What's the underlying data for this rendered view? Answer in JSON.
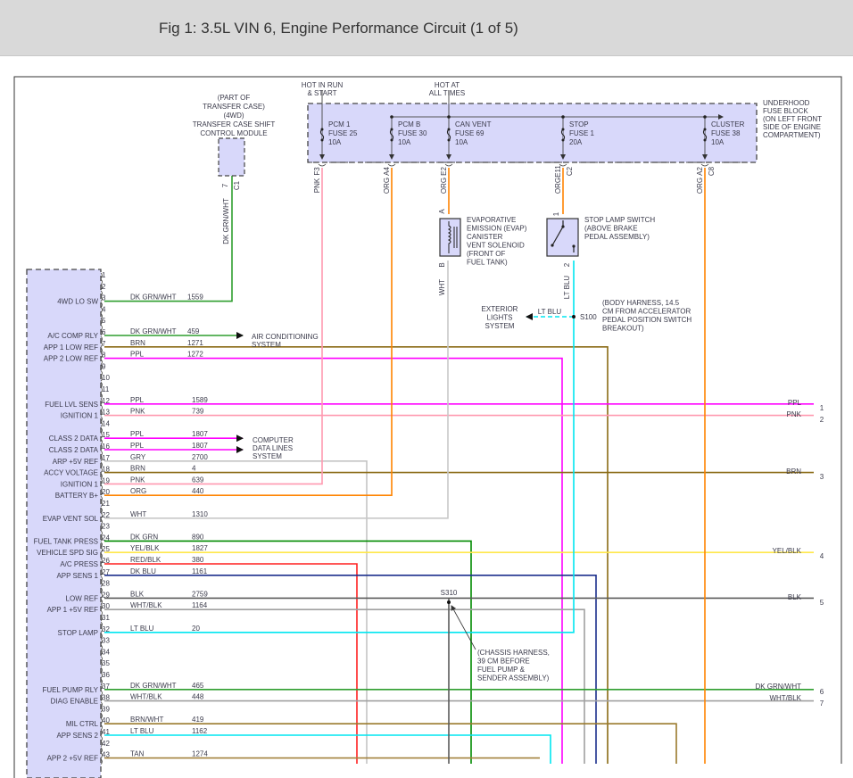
{
  "title": "Fig 1: 3.5L VIN 6, Engine Performance Circuit (1 of 5)",
  "fuse_block": {
    "label": [
      "UNDERHOOD",
      "FUSE BLOCK",
      "(ON LEFT FRONT",
      "SIDE OF ENGINE",
      "COMPARTMENT)"
    ],
    "hot_in_run": [
      "HOT IN RUN",
      "& START"
    ],
    "hot_at_all_times": [
      "HOT AT",
      "ALL TIMES"
    ],
    "fuses": [
      {
        "name": "PCM 1",
        "fuse": "FUSE 25",
        "amps": "10A",
        "terminal": "F3",
        "terminal2": "",
        "wire": "PNK"
      },
      {
        "name": "PCM B",
        "fuse": "FUSE 30",
        "amps": "10A",
        "terminal": "A4",
        "terminal2": "",
        "wire": "ORG"
      },
      {
        "name": "CAN VENT",
        "fuse": "FUSE 69",
        "amps": "10A",
        "terminal": "E2",
        "terminal2": "",
        "wire": "ORG"
      },
      {
        "name": "STOP",
        "fuse": "FUSE 1",
        "amps": "20A",
        "terminal": "E11",
        "terminal2": "C2",
        "wire": "ORG"
      },
      {
        "name": "CLUSTER",
        "fuse": "FUSE 38",
        "amps": "10A",
        "terminal": "A2",
        "terminal2": "C8",
        "wire": "ORG"
      }
    ]
  },
  "transfer_case_module": {
    "label": [
      "(PART OF",
      "TRANSFER CASE)",
      "(4WD)",
      "TRANSFER CASE SHIFT",
      "CONTROL MODULE"
    ],
    "pin": "7",
    "connector": "C1",
    "wire": "DK GRN/WHT"
  },
  "evap_solenoid": {
    "label": [
      "EVAPORATIVE",
      "EMISSION (EVAP)",
      "CANISTER",
      "VENT SOLENOID",
      "(FRONT OF",
      "FUEL TANK)"
    ],
    "pin_top": "A",
    "pin_bottom": "B",
    "wire_bottom": "WHT"
  },
  "stop_lamp_switch": {
    "label": [
      "STOP LAMP SWITCH",
      "(ABOVE BRAKE",
      "PEDAL ASSEMBLY)"
    ],
    "pin_top": "1",
    "pin_bottom": "2",
    "wire_bottom": "LT BLU"
  },
  "splice_s100": {
    "name": "S100",
    "label": [
      "(BODY HARNESS, 14.5",
      "CM FROM ACCELERATOR",
      "PEDAL POSITION SWITCH",
      "BREAKOUT)"
    ],
    "branch_wire": "LT BLU",
    "branch_target": [
      "EXTERIOR",
      "LIGHTS",
      "SYSTEM"
    ]
  },
  "splice_s310": {
    "name": "S310",
    "label": [
      "(CHASSIS HARNESS,",
      "39 CM BEFORE",
      "FUEL PUMP &",
      "SENDER ASSEMBLY)"
    ]
  },
  "arrow_targets": {
    "ac": [
      "AIR CONDITIONING",
      "SYSTEM"
    ],
    "data": [
      "COMPUTER",
      "DATA LINES",
      "SYSTEM"
    ]
  },
  "wire_colors": {
    "PPL": "#ff00ff",
    "PNK": "#ff99b0",
    "BRN": "#8a6a14",
    "DK GRN/WHT": "#2f9e2f",
    "DK GRN": "#008a00",
    "GRY": "#c4c4c4",
    "ORG": "#ff8400",
    "WHT": "#c8c8c8",
    "YEL/BLK": "#ffe84a",
    "RED/BLK": "#ff2020",
    "DK BLU": "#1c2f8c",
    "BLK": "#5a5a5a",
    "WHT/BLK": "#a0a0a0",
    "LT BLU": "#00e6f0",
    "BRN/WHT": "#9a7a2c",
    "TAN": "#a3823e"
  },
  "module_pins": [
    {
      "pin": "1"
    },
    {
      "pin": "2"
    },
    {
      "pin": "3",
      "label": "4WD LO SW",
      "color": "DK GRN/WHT",
      "circuit": "1559"
    },
    {
      "pin": "4"
    },
    {
      "pin": "5"
    },
    {
      "pin": "6",
      "label": "A/C COMP RLY",
      "color": "DK GRN/WHT",
      "circuit": "459"
    },
    {
      "pin": "7",
      "label": "APP 1 LOW REF",
      "color": "BRN",
      "circuit": "1271"
    },
    {
      "pin": "8",
      "label": "APP 2 LOW REF",
      "color": "PPL",
      "circuit": "1272"
    },
    {
      "pin": "9"
    },
    {
      "pin": "10"
    },
    {
      "pin": "11"
    },
    {
      "pin": "12",
      "label": "FUEL LVL SENS",
      "color": "PPL",
      "circuit": "1589"
    },
    {
      "pin": "13",
      "label": "IGNITION 1",
      "color": "PNK",
      "circuit": "739"
    },
    {
      "pin": "14"
    },
    {
      "pin": "15",
      "label": "CLASS 2 DATA",
      "color": "PPL",
      "circuit": "1807"
    },
    {
      "pin": "16",
      "label": "CLASS 2 DATA",
      "color": "PPL",
      "circuit": "1807"
    },
    {
      "pin": "17",
      "label": "ARP +5V REF",
      "color": "GRY",
      "circuit": "2700"
    },
    {
      "pin": "18",
      "label": "ACCY VOLTAGE",
      "color": "BRN",
      "circuit": "4"
    },
    {
      "pin": "19",
      "label": "IGNITION 1",
      "color": "PNK",
      "circuit": "639"
    },
    {
      "pin": "20",
      "label": "BATTERY B+",
      "color": "ORG",
      "circuit": "440"
    },
    {
      "pin": "21"
    },
    {
      "pin": "22",
      "label": "EVAP VENT SOL",
      "color": "WHT",
      "circuit": "1310"
    },
    {
      "pin": "23"
    },
    {
      "pin": "24",
      "label": "FUEL TANK PRESS",
      "color": "DK GRN",
      "circuit": "890"
    },
    {
      "pin": "25",
      "label": "VEHICLE SPD SIG",
      "color": "YEL/BLK",
      "circuit": "1827"
    },
    {
      "pin": "26",
      "label": "A/C PRESS",
      "color": "RED/BLK",
      "circuit": "380"
    },
    {
      "pin": "27",
      "label": "APP SENS 1",
      "color": "DK BLU",
      "circuit": "1161"
    },
    {
      "pin": "28"
    },
    {
      "pin": "29",
      "label": "LOW REF",
      "color": "BLK",
      "circuit": "2759"
    },
    {
      "pin": "30",
      "label": "APP 1 +5V REF",
      "color": "WHT/BLK",
      "circuit": "1164"
    },
    {
      "pin": "31"
    },
    {
      "pin": "32",
      "label": "STOP LAMP",
      "color": "LT BLU",
      "circuit": "20"
    },
    {
      "pin": "33"
    },
    {
      "pin": "34"
    },
    {
      "pin": "35"
    },
    {
      "pin": "36"
    },
    {
      "pin": "37",
      "label": "FUEL PUMP RLY",
      "color": "DK GRN/WHT",
      "circuit": "465"
    },
    {
      "pin": "38",
      "label": "DIAG ENABLE",
      "color": "WHT/BLK",
      "circuit": "448"
    },
    {
      "pin": "39"
    },
    {
      "pin": "40",
      "label": "MIL CTRL",
      "color": "BRN/WHT",
      "circuit": "419"
    },
    {
      "pin": "41",
      "label": "APP SENS 2",
      "color": "LT BLU",
      "circuit": "1162"
    },
    {
      "pin": "42"
    },
    {
      "pin": "43",
      "label": "APP 2 +5V REF",
      "color": "TAN",
      "circuit": "1274"
    }
  ],
  "right_connectors": [
    {
      "num": "1",
      "color": "PPL"
    },
    {
      "num": "2",
      "color": "PNK"
    },
    {
      "num": "3",
      "color": "BRN"
    },
    {
      "num": "4",
      "color": "YEL/BLK"
    },
    {
      "num": "5",
      "color": "BLK"
    },
    {
      "num": "6",
      "color": "DK GRN/WHT"
    },
    {
      "num": "7",
      "color": "WHT/BLK"
    }
  ]
}
